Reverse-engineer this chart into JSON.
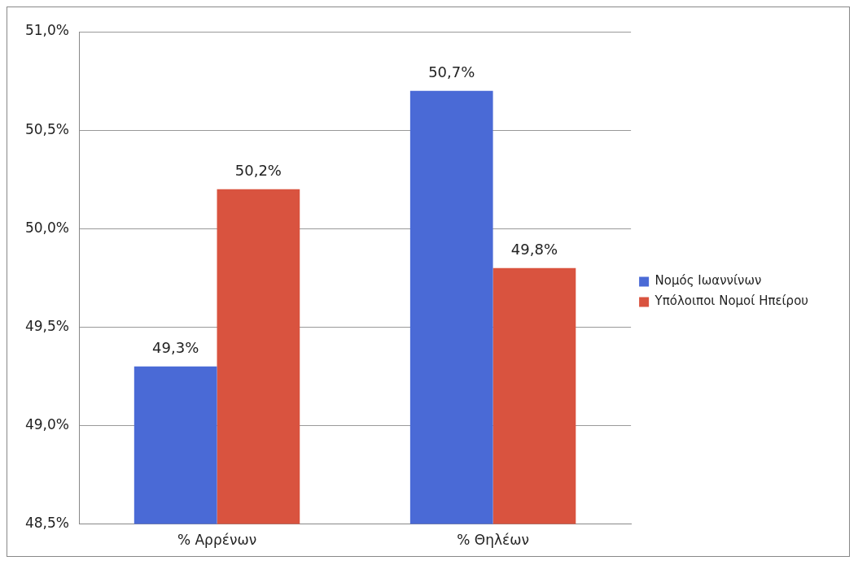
{
  "chart_data": {
    "type": "bar",
    "categories": [
      "% Αρρένων",
      "% Θηλέων"
    ],
    "series": [
      {
        "name": "Νομός Ιωαννίνων",
        "color": "#4a6ad6",
        "values": [
          49.3,
          50.7
        ],
        "value_labels": [
          "49,3%",
          "50,7%"
        ]
      },
      {
        "name": "Υπόλοιποι Νομοί Ηπείρου",
        "color": "#d9533f",
        "values": [
          50.2,
          49.8
        ],
        "value_labels": [
          "50,2%",
          "49,8%"
        ]
      }
    ],
    "ylim": [
      48.5,
      51.0
    ],
    "yticks": [
      {
        "value": 48.5,
        "label": "48,5%"
      },
      {
        "value": 49.0,
        "label": "49,0%"
      },
      {
        "value": 49.5,
        "label": "49,5%"
      },
      {
        "value": 50.0,
        "label": "50,0%"
      },
      {
        "value": 50.5,
        "label": "50,5%"
      },
      {
        "value": 51.0,
        "label": "51,0%"
      }
    ],
    "grid": "y",
    "legend": "right"
  }
}
